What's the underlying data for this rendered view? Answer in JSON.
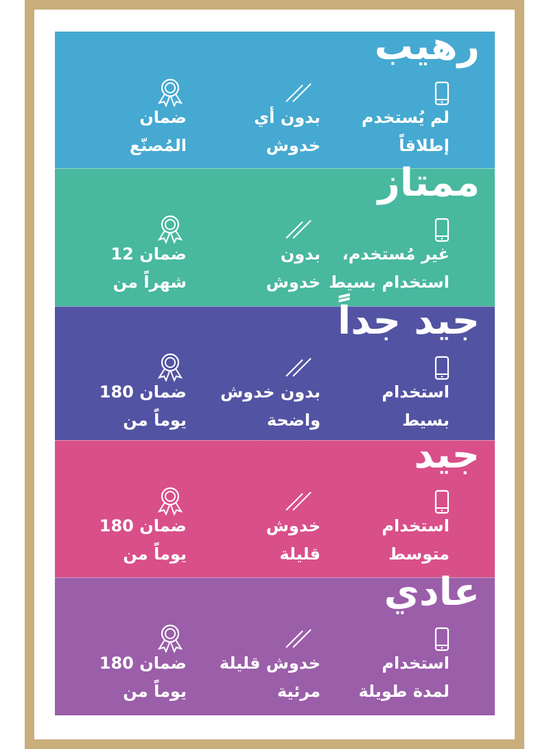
{
  "sections": [
    {
      "title": "رهيب",
      "items": [
        [
          "لم يُستخدم",
          "إطلاقاً"
        ],
        [
          "بدون أي",
          "خدوش"
        ],
        [
          "ضمان",
          "المُصنّع"
        ]
      ]
    },
    {
      "title": "ممتاز",
      "items": [
        [
          "غير مُستخدم،",
          "استخدام بسيط"
        ],
        [
          "بدون",
          "خدوش"
        ],
        [
          "ضمان 12",
          "شهراً من"
        ]
      ]
    },
    {
      "title": "جيد جداً",
      "items": [
        [
          "استخدام",
          "بسيط"
        ],
        [
          "بدون خدوش",
          "واضحة"
        ],
        [
          "ضمان 180",
          "يوماً من"
        ]
      ]
    },
    {
      "title": "جيد",
      "items": [
        [
          "استخدام",
          "متوسط"
        ],
        [
          "خدوش",
          "قليلة"
        ],
        [
          "ضمان 180",
          "يوماً من"
        ]
      ]
    },
    {
      "title": "عادي",
      "items": [
        [
          "استخدام",
          "لمدة طويلة"
        ],
        [
          "خدوش قليلة",
          "مرئية"
        ],
        [
          "ضمان 180",
          "يوماً من"
        ]
      ]
    }
  ]
}
